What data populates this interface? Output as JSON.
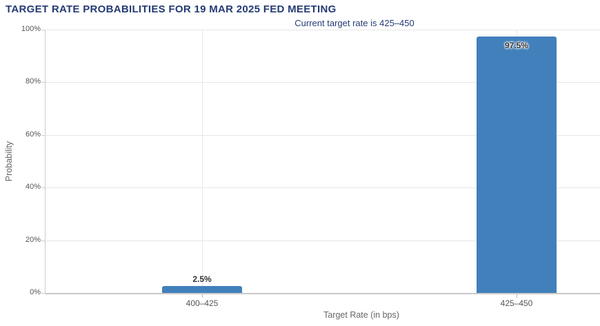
{
  "page": {
    "title": "TARGET RATE PROBABILITIES FOR 19 MAR 2025 FED MEETING",
    "subtitle": "Current target rate is 425–450"
  },
  "chart_data": {
    "type": "bar",
    "title": "TARGET RATE PROBABILITIES FOR 19 MAR 2025 FED MEETING",
    "subtitle": "Current target rate is 425–450",
    "categories": [
      "400–425",
      "425–450"
    ],
    "values": [
      2.5,
      97.5
    ],
    "value_labels": [
      "2.5%",
      "97.5%"
    ],
    "xlabel": "Target Rate (in bps)",
    "ylabel": "Probability",
    "ylim": [
      0,
      100
    ],
    "yticks": [
      0,
      20,
      40,
      60,
      80,
      100
    ],
    "ytick_labels": [
      "0%",
      "20%",
      "40%",
      "60%",
      "80%",
      "100%"
    ],
    "grid": true,
    "legend_position": "none",
    "colors": {
      "bar": "#4180bb",
      "heading_text": "#243b73",
      "axis_title_text": "#666666",
      "tick_text": "#555555",
      "gridline": "#e6e6e6",
      "axis_line": "#c9c9c9"
    }
  }
}
